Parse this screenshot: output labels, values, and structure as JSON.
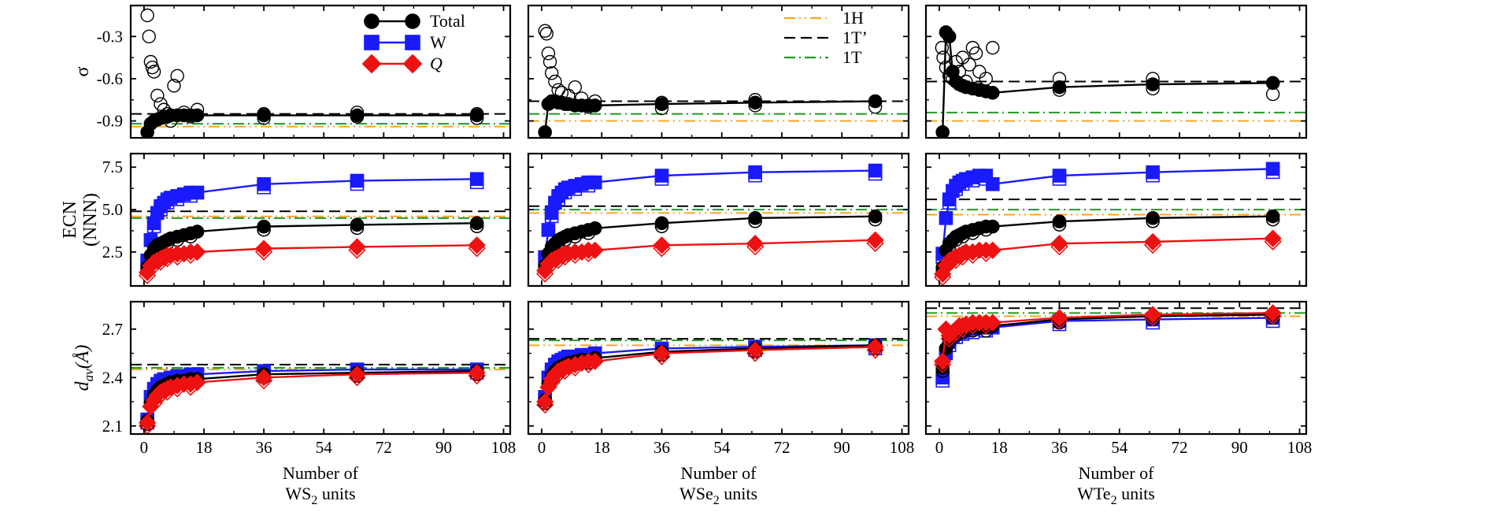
{
  "figure": {
    "columns": [
      {
        "id": "ws2",
        "xlabel_line1": "Number of",
        "xlabel_material": "WS",
        "xlabel_sub": "2",
        "xlabel_suffix": " units"
      },
      {
        "id": "wse2",
        "xlabel_line1": "Number of",
        "xlabel_material": "WSe",
        "xlabel_sub": "2",
        "xlabel_suffix": " units"
      },
      {
        "id": "wte2",
        "xlabel_line1": "Number of",
        "xlabel_material": "WTe",
        "xlabel_sub": "2",
        "xlabel_suffix": " units"
      }
    ],
    "x_ticks": [
      0,
      18,
      36,
      54,
      72,
      90,
      108
    ],
    "xlim": [
      -4,
      110
    ],
    "rows": [
      {
        "id": "sigma",
        "ylabel": "σ",
        "ylim": [
          -1.02,
          -0.08
        ],
        "y_ticks": [
          "-0.3",
          "-0.6",
          "-0.9"
        ],
        "y_tick_values": [
          -0.3,
          -0.6,
          -0.9
        ]
      },
      {
        "id": "ecn",
        "ylabel_line1": "ECN",
        "ylabel_line2": "(NNN)",
        "ylim": [
          0.5,
          8.3
        ],
        "y_ticks": [
          "7.5",
          "5.0",
          "2.5"
        ],
        "y_tick_values": [
          7.5,
          5.0,
          2.5
        ]
      },
      {
        "id": "dav",
        "ylabel_main": "d",
        "ylabel_sub": "av",
        "ylabel_unit": "(Å)",
        "ylim": [
          2.05,
          2.87
        ],
        "y_ticks": [
          "2.7",
          "2.4",
          "2.1"
        ],
        "y_tick_values": [
          2.7,
          2.4,
          2.1
        ]
      }
    ]
  },
  "legend_series": {
    "items": [
      {
        "label": "Total",
        "color": "#000000",
        "marker": "circle"
      },
      {
        "label": "W",
        "color": "#1a1aff",
        "marker": "square"
      },
      {
        "label": "Q",
        "color": "#ee1111",
        "marker": "diamond"
      }
    ]
  },
  "legend_phases": {
    "items": [
      {
        "label": "1H",
        "color": "#f5a623",
        "dash": "dashdotdot"
      },
      {
        "label": "1T’",
        "color": "#000000",
        "dash": "dash"
      },
      {
        "label": "1T",
        "color": "#229922",
        "dash": "dashdot"
      }
    ]
  },
  "chart_data": [
    {
      "type": "scatter",
      "material": "WS2",
      "quantity": "sigma",
      "x_sizes": [
        1,
        2,
        3,
        4,
        5,
        6,
        7,
        8,
        10,
        12,
        14,
        16,
        36,
        64,
        100
      ],
      "series": [
        {
          "name": "Total",
          "values": [
            -0.98,
            -0.92,
            -0.9,
            -0.89,
            -0.88,
            -0.87,
            -0.87,
            -0.86,
            -0.86,
            -0.86,
            -0.86,
            -0.86,
            -0.86,
            -0.86,
            -0.86
          ]
        }
      ],
      "scatter_points": [
        [
          1,
          -0.15
        ],
        [
          1.5,
          -0.3
        ],
        [
          2,
          -0.48
        ],
        [
          2.5,
          -0.52
        ],
        [
          3,
          -0.55
        ],
        [
          4,
          -0.72
        ],
        [
          5,
          -0.78
        ],
        [
          6,
          -0.82
        ],
        [
          9,
          -0.65
        ],
        [
          10,
          -0.58
        ],
        [
          7,
          -0.85
        ],
        [
          8,
          -0.9
        ],
        [
          12,
          -0.84
        ],
        [
          14,
          -0.87
        ],
        [
          16,
          -0.82
        ],
        [
          36,
          -0.85
        ],
        [
          36,
          -0.88
        ],
        [
          64,
          -0.84
        ],
        [
          64,
          -0.87
        ],
        [
          100,
          -0.85
        ],
        [
          100,
          -0.88
        ]
      ],
      "reference_lines": {
        "1H": -0.94,
        "1T’": -0.85,
        "1T": -0.92
      }
    },
    {
      "type": "scatter",
      "material": "WSe2",
      "quantity": "sigma",
      "x_sizes": [
        1,
        2,
        3,
        4,
        5,
        6,
        7,
        8,
        10,
        12,
        14,
        16,
        36,
        64,
        100
      ],
      "series": [
        {
          "name": "Total",
          "values": [
            -0.98,
            -0.78,
            -0.76,
            -0.76,
            -0.77,
            -0.77,
            -0.78,
            -0.78,
            -0.79,
            -0.79,
            -0.79,
            -0.79,
            -0.78,
            -0.77,
            -0.76
          ]
        }
      ],
      "scatter_points": [
        [
          1,
          -0.26
        ],
        [
          1.5,
          -0.28
        ],
        [
          2,
          -0.42
        ],
        [
          2.5,
          -0.48
        ],
        [
          3,
          -0.56
        ],
        [
          4,
          -0.62
        ],
        [
          5,
          -0.68
        ],
        [
          6,
          -0.7
        ],
        [
          8,
          -0.72
        ],
        [
          10,
          -0.66
        ],
        [
          12,
          -0.74
        ],
        [
          14,
          -0.8
        ],
        [
          16,
          -0.76
        ],
        [
          36,
          -0.77
        ],
        [
          36,
          -0.81
        ],
        [
          64,
          -0.75
        ],
        [
          64,
          -0.79
        ],
        [
          100,
          -0.76
        ],
        [
          100,
          -0.8
        ]
      ],
      "reference_lines": {
        "1H": -0.9,
        "1T’": -0.76,
        "1T": -0.85
      }
    },
    {
      "type": "scatter",
      "material": "WTe2",
      "quantity": "sigma",
      "x_sizes": [
        1,
        2,
        3,
        4,
        5,
        6,
        7,
        8,
        10,
        12,
        14,
        16,
        36,
        64,
        100
      ],
      "series": [
        {
          "name": "Total",
          "values": [
            -0.98,
            -0.27,
            -0.3,
            -0.55,
            -0.62,
            -0.64,
            -0.65,
            -0.66,
            -0.67,
            -0.68,
            -0.69,
            -0.7,
            -0.66,
            -0.64,
            -0.63
          ]
        }
      ],
      "scatter_points": [
        [
          0.8,
          -0.38
        ],
        [
          1.2,
          -0.45
        ],
        [
          2,
          -0.52
        ],
        [
          3,
          -0.58
        ],
        [
          4,
          -0.6
        ],
        [
          5,
          -0.48
        ],
        [
          6,
          -0.55
        ],
        [
          7,
          -0.45
        ],
        [
          8,
          -0.62
        ],
        [
          9,
          -0.5
        ],
        [
          10,
          -0.38
        ],
        [
          11,
          -0.42
        ],
        [
          12,
          -0.55
        ],
        [
          14,
          -0.6
        ],
        [
          16,
          -0.38
        ],
        [
          36,
          -0.6
        ],
        [
          36,
          -0.68
        ],
        [
          64,
          -0.6
        ],
        [
          64,
          -0.67
        ],
        [
          100,
          -0.63
        ],
        [
          100,
          -0.71
        ]
      ],
      "reference_lines": {
        "1H": -0.9,
        "1T’": -0.62,
        "1T": -0.84
      }
    },
    {
      "type": "line",
      "material": "WS2",
      "quantity": "ECN (NNN)",
      "x_sizes": [
        1,
        2,
        3,
        4,
        5,
        6,
        7,
        8,
        10,
        12,
        14,
        16,
        36,
        64,
        100
      ],
      "series": [
        {
          "name": "Total",
          "values": [
            1.6,
            2.3,
            2.7,
            2.9,
            3.0,
            3.1,
            3.2,
            3.3,
            3.4,
            3.5,
            3.6,
            3.7,
            4.0,
            4.1,
            4.2
          ]
        },
        {
          "name": "W",
          "values": [
            2.0,
            3.2,
            4.2,
            4.8,
            5.2,
            5.4,
            5.6,
            5.7,
            5.8,
            5.9,
            6.0,
            6.0,
            6.5,
            6.7,
            6.8
          ]
        },
        {
          "name": "Q",
          "values": [
            1.3,
            1.7,
            1.9,
            2.0,
            2.1,
            2.2,
            2.3,
            2.3,
            2.4,
            2.4,
            2.5,
            2.5,
            2.7,
            2.8,
            2.9
          ]
        }
      ],
      "reference_lines": {
        "1H": 4.6,
        "1T’": 4.9,
        "1T": 4.5
      }
    },
    {
      "type": "line",
      "material": "WSe2",
      "quantity": "ECN (NNN)",
      "x_sizes": [
        1,
        2,
        3,
        4,
        5,
        6,
        7,
        8,
        10,
        12,
        14,
        16,
        36,
        64,
        100
      ],
      "series": [
        {
          "name": "Total",
          "values": [
            1.7,
            2.4,
            2.8,
            3.0,
            3.2,
            3.3,
            3.4,
            3.5,
            3.6,
            3.7,
            3.8,
            3.9,
            4.2,
            4.5,
            4.6
          ]
        },
        {
          "name": "W",
          "values": [
            2.2,
            3.8,
            4.8,
            5.4,
            5.8,
            6.0,
            6.2,
            6.3,
            6.4,
            6.5,
            6.6,
            6.6,
            7.0,
            7.2,
            7.3
          ]
        },
        {
          "name": "Q",
          "values": [
            1.4,
            1.8,
            2.0,
            2.1,
            2.2,
            2.3,
            2.4,
            2.4,
            2.5,
            2.5,
            2.6,
            2.6,
            2.9,
            3.0,
            3.2
          ]
        }
      ],
      "reference_lines": {
        "1H": 4.8,
        "1T’": 5.2,
        "1T": 5.0
      }
    },
    {
      "type": "line",
      "material": "WTe2",
      "quantity": "ECN (NNN)",
      "x_sizes": [
        1,
        2,
        3,
        4,
        5,
        6,
        7,
        8,
        10,
        12,
        14,
        16,
        36,
        64,
        100
      ],
      "series": [
        {
          "name": "Total",
          "values": [
            1.6,
            2.6,
            3.0,
            3.2,
            3.4,
            3.5,
            3.6,
            3.7,
            3.8,
            3.9,
            4.0,
            4.0,
            4.3,
            4.5,
            4.6
          ]
        },
        {
          "name": "W",
          "values": [
            2.4,
            4.5,
            5.6,
            6.1,
            6.4,
            6.6,
            6.7,
            6.8,
            6.9,
            7.0,
            7.0,
            6.5,
            7.0,
            7.2,
            7.4
          ]
        },
        {
          "name": "Q",
          "values": [
            1.2,
            1.7,
            2.0,
            2.1,
            2.2,
            2.3,
            2.4,
            2.5,
            2.5,
            2.6,
            2.6,
            2.6,
            3.0,
            3.1,
            3.3
          ]
        }
      ],
      "reference_lines": {
        "1H": 4.7,
        "1T’": 5.6,
        "1T": 5.0
      }
    },
    {
      "type": "line",
      "material": "WS2",
      "quantity": "d_av (Å)",
      "x_sizes": [
        1,
        2,
        3,
        4,
        5,
        6,
        7,
        8,
        10,
        12,
        14,
        16,
        36,
        64,
        100
      ],
      "series": [
        {
          "name": "Total",
          "values": [
            2.13,
            2.24,
            2.29,
            2.32,
            2.34,
            2.35,
            2.36,
            2.37,
            2.38,
            2.38,
            2.39,
            2.39,
            2.42,
            2.43,
            2.44
          ]
        },
        {
          "name": "W",
          "values": [
            2.14,
            2.28,
            2.33,
            2.36,
            2.38,
            2.39,
            2.39,
            2.4,
            2.41,
            2.41,
            2.42,
            2.42,
            2.44,
            2.45,
            2.45
          ]
        },
        {
          "name": "Q",
          "values": [
            2.12,
            2.22,
            2.26,
            2.29,
            2.31,
            2.32,
            2.33,
            2.34,
            2.35,
            2.36,
            2.36,
            2.37,
            2.4,
            2.42,
            2.43
          ]
        }
      ],
      "reference_lines": {
        "1H": 2.45,
        "1T’": 2.48,
        "1T": 2.46
      }
    },
    {
      "type": "line",
      "material": "WSe2",
      "quantity": "d_av (Å)",
      "x_sizes": [
        1,
        2,
        3,
        4,
        5,
        6,
        7,
        8,
        10,
        12,
        14,
        16,
        36,
        64,
        100
      ],
      "series": [
        {
          "name": "Total",
          "values": [
            2.26,
            2.36,
            2.41,
            2.44,
            2.46,
            2.47,
            2.48,
            2.49,
            2.5,
            2.51,
            2.51,
            2.52,
            2.56,
            2.58,
            2.6
          ]
        },
        {
          "name": "W",
          "values": [
            2.28,
            2.4,
            2.45,
            2.48,
            2.5,
            2.51,
            2.52,
            2.53,
            2.53,
            2.54,
            2.54,
            2.55,
            2.58,
            2.59,
            2.6
          ]
        },
        {
          "name": "Q",
          "values": [
            2.25,
            2.34,
            2.39,
            2.42,
            2.44,
            2.45,
            2.46,
            2.47,
            2.48,
            2.49,
            2.5,
            2.5,
            2.55,
            2.57,
            2.59
          ]
        }
      ],
      "reference_lines": {
        "1H": 2.6,
        "1T’": 2.64,
        "1T": 2.63
      }
    },
    {
      "type": "line",
      "material": "WTe2",
      "quantity": "d_av (Å)",
      "x_sizes": [
        1,
        2,
        3,
        4,
        5,
        6,
        7,
        8,
        10,
        12,
        14,
        16,
        36,
        64,
        100
      ],
      "series": [
        {
          "name": "Total",
          "values": [
            2.46,
            2.58,
            2.64,
            2.66,
            2.68,
            2.69,
            2.7,
            2.7,
            2.71,
            2.71,
            2.71,
            2.72,
            2.76,
            2.78,
            2.79
          ]
        },
        {
          "name": "W",
          "values": [
            2.4,
            2.55,
            2.62,
            2.65,
            2.67,
            2.68,
            2.69,
            2.7,
            2.7,
            2.71,
            2.71,
            2.71,
            2.75,
            2.76,
            2.77
          ]
        },
        {
          "name": "Q",
          "values": [
            2.5,
            2.7,
            2.66,
            2.68,
            2.7,
            2.72,
            2.72,
            2.73,
            2.74,
            2.74,
            2.74,
            2.74,
            2.77,
            2.79,
            2.8
          ]
        }
      ],
      "reference_lines": {
        "1H": 2.78,
        "1T’": 2.83,
        "1T": 2.8
      }
    }
  ]
}
